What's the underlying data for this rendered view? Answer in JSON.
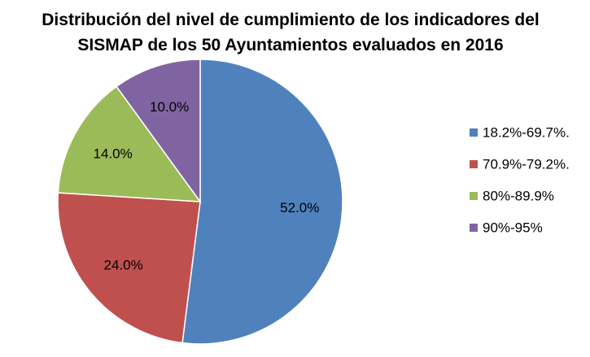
{
  "chart_data": {
    "type": "pie",
    "title_lines": [
      "Distribución del nivel de cumplimiento de los indicadores del",
      "SISMAP de los 50 Ayuntamientos evaluados en 2016"
    ],
    "slices": [
      {
        "label": "18.2%-69.7%.",
        "value": 52.0,
        "display": "52.0%",
        "color": "#4F81BD"
      },
      {
        "label": "70.9%-79.2%.",
        "value": 24.0,
        "display": "24.0%",
        "color": "#C0504D"
      },
      {
        "label": "80%-89.9%",
        "value": 14.0,
        "display": "14.0%",
        "color": "#9BBB59"
      },
      {
        "label": "90%-95%",
        "value": 10.0,
        "display": "10.0%",
        "color": "#8064A2"
      }
    ],
    "start_angle_deg": 0,
    "direction": "clockwise",
    "legend_position": "right"
  }
}
